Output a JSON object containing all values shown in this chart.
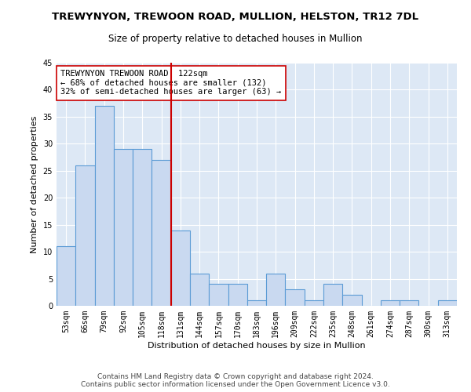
{
  "title_line1": "TREWYNYON, TREWOON ROAD, MULLION, HELSTON, TR12 7DL",
  "title_line2": "Size of property relative to detached houses in Mullion",
  "xlabel": "Distribution of detached houses by size in Mullion",
  "ylabel": "Number of detached properties",
  "categories": [
    "53sqm",
    "66sqm",
    "79sqm",
    "92sqm",
    "105sqm",
    "118sqm",
    "131sqm",
    "144sqm",
    "157sqm",
    "170sqm",
    "183sqm",
    "196sqm",
    "209sqm",
    "222sqm",
    "235sqm",
    "248sqm",
    "261sqm",
    "274sqm",
    "287sqm",
    "300sqm",
    "313sqm"
  ],
  "values": [
    11,
    26,
    37,
    29,
    29,
    27,
    14,
    6,
    4,
    4,
    1,
    6,
    3,
    1,
    4,
    2,
    0,
    1,
    1,
    0,
    1
  ],
  "bar_color": "#c9d9f0",
  "bar_edge_color": "#5b9bd5",
  "vline_x": 5.5,
  "vline_color": "#cc0000",
  "annotation_text": "TREWYNYON TREWOON ROAD: 122sqm\n← 68% of detached houses are smaller (132)\n32% of semi-detached houses are larger (63) →",
  "annotation_box_color": "#ffffff",
  "annotation_box_edge": "#cc0000",
  "ylim": [
    0,
    45
  ],
  "yticks": [
    0,
    5,
    10,
    15,
    20,
    25,
    30,
    35,
    40,
    45
  ],
  "bg_color": "#dde8f5",
  "footer_line1": "Contains HM Land Registry data © Crown copyright and database right 2024.",
  "footer_line2": "Contains public sector information licensed under the Open Government Licence v3.0.",
  "title_fontsize": 9.5,
  "subtitle_fontsize": 8.5,
  "axis_label_fontsize": 8,
  "tick_fontsize": 7,
  "annotation_fontsize": 7.5,
  "footer_fontsize": 6.5
}
